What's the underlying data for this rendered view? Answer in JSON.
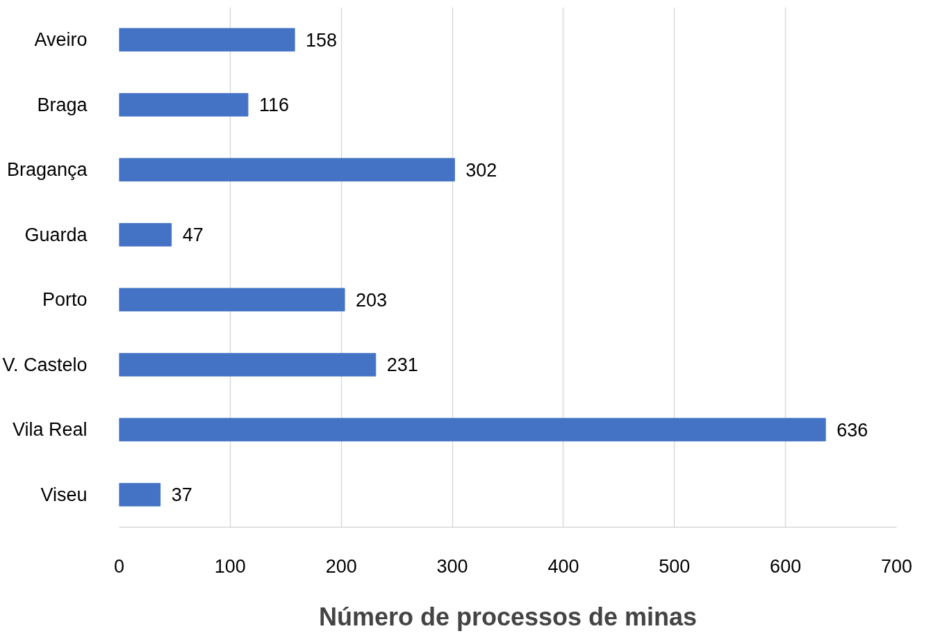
{
  "chart_data": {
    "type": "bar",
    "orientation": "horizontal",
    "xlabel": "Número de processos de minas",
    "categories": [
      "Aveiro",
      "Braga",
      "Bragança",
      "Guarda",
      "Porto",
      "V. Castelo",
      "Vila Real",
      "Viseu"
    ],
    "values": [
      158,
      116,
      302,
      47,
      203,
      231,
      636,
      37
    ],
    "color": "#4472c4",
    "xlim": [
      0,
      700
    ],
    "xticks": [
      0,
      100,
      200,
      300,
      400,
      500,
      600,
      700
    ],
    "grid": "x",
    "data_labels": true
  }
}
